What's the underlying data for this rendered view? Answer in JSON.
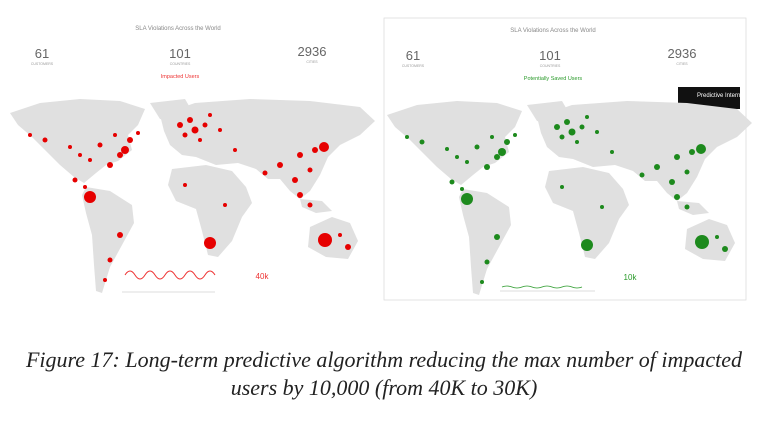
{
  "figure": {
    "panels": [
      {
        "title": "SLA Violations Across the World",
        "stats": [
          {
            "value": 61,
            "label": "CUSTOMERS"
          },
          {
            "value": 101,
            "label": "COUNTRIES"
          },
          {
            "value": 2936,
            "label": "CITIES"
          }
        ],
        "map_title": "Impacted Users",
        "metric": "40k"
      },
      {
        "title": "SLA Violations Across the World",
        "stats": [
          {
            "value": 61,
            "label": "CUSTOMERS"
          },
          {
            "value": 101,
            "label": "COUNTRIES"
          },
          {
            "value": 2936,
            "label": "CITIES"
          }
        ],
        "map_title": "Potentially Saved Users",
        "metric": "10k",
        "logo": "Predictive Internet"
      }
    ],
    "caption": "Figure 17: Long-term predictive algorithm reducing the max number of impacted users by 10,000 (from 40K to 30K)"
  }
}
